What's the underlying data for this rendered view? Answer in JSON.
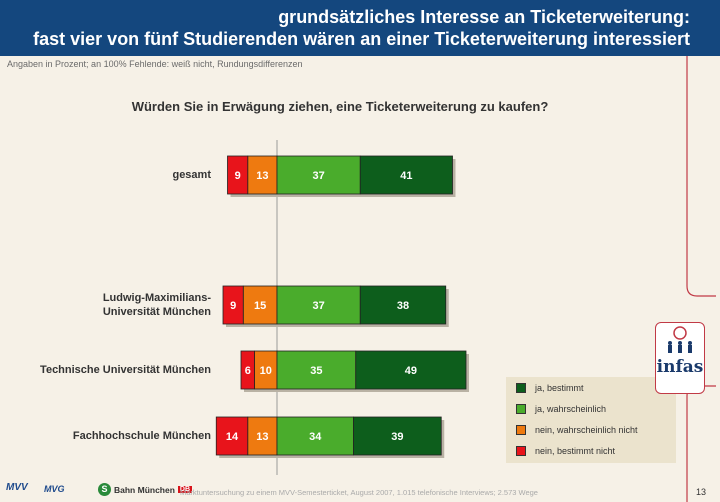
{
  "header": {
    "line1": "grundsätzliches Interesse an Ticketerweiterung:",
    "line2": "fast vier von fünf Studierenden wären an einer Ticketerweiterung interessiert"
  },
  "subtitle": "Angaben in Prozent; an 100% Fehlende: weiß nicht, Rundungsdifferenzen",
  "footer": {
    "source": "Marktuntersuchung zu einem MVV-Semesterticket, August 2007, 1.015 telefonische Interviews; 2.573 Wege",
    "page": "13"
  },
  "logos": {
    "mvv": "MVV",
    "mvg": "MVG",
    "sbahn_s": "S",
    "sbahn": "Bahn München",
    "db": "DB",
    "infas": "infas"
  },
  "colors": {
    "nein_bestimmt_nicht": "#e8141b",
    "nein_wahrscheinlich_nicht": "#ee7a10",
    "ja_wahrscheinlich": "#4aac2c",
    "ja_bestimmt": "#0d5e1c"
  },
  "chart_data": {
    "type": "bar",
    "orientation": "horizontal-diverging",
    "title": "Würden Sie in Erwägung ziehen, eine Ticketerweiterung zu kaufen?",
    "categories": [
      {
        "label": [
          "gesamt"
        ]
      },
      {
        "label": [
          "Ludwig-Maximilians-",
          "Universität München"
        ]
      },
      {
        "label": [
          "Technische Universität München"
        ]
      },
      {
        "label": [
          "Fachhochschule München"
        ]
      }
    ],
    "series": [
      {
        "name": "nein, bestimmt nicht",
        "side": "negative",
        "color": "#e8141b",
        "values": [
          9,
          9,
          6,
          14
        ]
      },
      {
        "name": "nein, wahrscheinlich nicht",
        "side": "negative",
        "color": "#ee7a10",
        "values": [
          13,
          15,
          10,
          13
        ]
      },
      {
        "name": "ja, wahrscheinlich",
        "side": "positive",
        "color": "#4aac2c",
        "values": [
          37,
          37,
          35,
          34
        ]
      },
      {
        "name": "ja, bestimmt",
        "side": "positive",
        "color": "#0d5e1c",
        "values": [
          41,
          38,
          49,
          39
        ]
      }
    ],
    "legend": {
      "position": "bottom-right",
      "entries": [
        "ja, bestimmt",
        "ja, wahrscheinlich",
        "nein, wahrscheinlich nicht",
        "nein, bestimmt nicht"
      ]
    }
  }
}
